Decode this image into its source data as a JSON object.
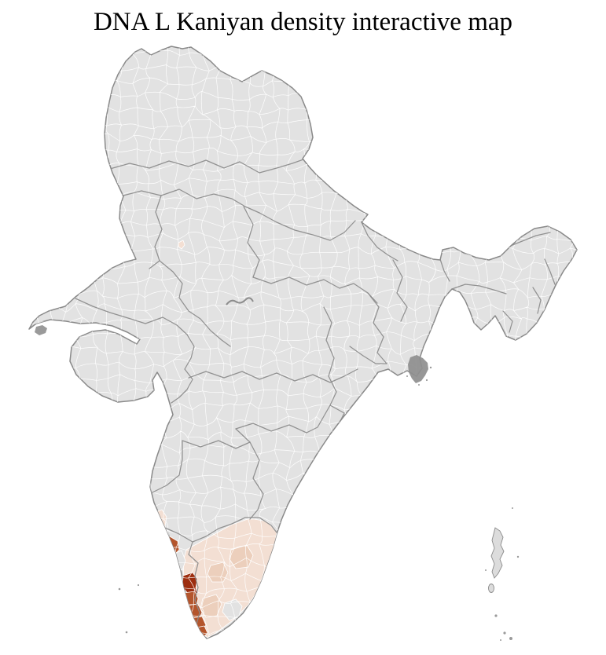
{
  "title": "DNA L Kaniyan density interactive map",
  "map": {
    "type": "choropleth",
    "country_outline": "india-districts",
    "colors": {
      "background": "#ffffff",
      "district_default": "#e2e2e2",
      "district_border": "#ffffff",
      "state_border": "#8a8a8a",
      "country_border": "#898989",
      "density_low": "#f3dfd3",
      "density_medium": "#eccfbc",
      "density_high": "#b4552c",
      "density_highest": "#9d2e0f"
    },
    "highlighted_regions": [
      {
        "name": "southwest-coast-karnataka-district",
        "level": "high"
      },
      {
        "name": "north-kerala-district",
        "level": "highest"
      },
      {
        "name": "kerala-coastal-chain",
        "level": "high"
      },
      {
        "name": "tamil-nadu-region",
        "level": "low"
      },
      {
        "name": "tamil-nadu-interior-districts",
        "level": "medium"
      },
      {
        "name": "northwest-small-district",
        "level": "low"
      }
    ]
  }
}
